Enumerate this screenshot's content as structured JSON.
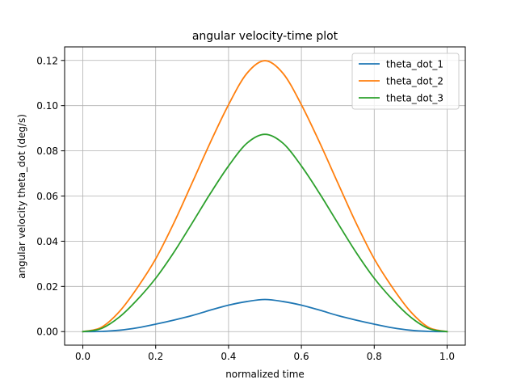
{
  "chart_data": {
    "type": "line",
    "title": "angular velocity-time plot",
    "xlabel": "normalized time",
    "ylabel": "angular velocity theta_dot (deg/s)",
    "xlim": [
      -0.05,
      1.05
    ],
    "ylim": [
      -0.006,
      0.126
    ],
    "xticks": [
      0.0,
      0.2,
      0.4,
      0.6,
      0.8,
      1.0
    ],
    "xtick_labels": [
      "0.0",
      "0.2",
      "0.4",
      "0.6",
      "0.8",
      "1.0"
    ],
    "yticks": [
      0.0,
      0.02,
      0.04,
      0.06,
      0.08,
      0.1,
      0.12
    ],
    "ytick_labels": [
      "0.00",
      "0.02",
      "0.04",
      "0.06",
      "0.08",
      "0.10",
      "0.12"
    ],
    "grid": true,
    "legend_position": "top-right",
    "x": [
      0.0,
      0.05,
      0.1,
      0.15,
      0.2,
      0.25,
      0.3,
      0.35,
      0.4,
      0.45,
      0.5,
      0.55,
      0.6,
      0.65,
      0.7,
      0.75,
      0.8,
      0.85,
      0.9,
      0.95,
      1.0
    ],
    "series": [
      {
        "name": "theta_dot_1",
        "color": "#1f77b4",
        "values": [
          0.0,
          8e-05,
          0.0006,
          0.0017,
          0.0033,
          0.0051,
          0.0071,
          0.0095,
          0.0117,
          0.0133,
          0.0142,
          0.0133,
          0.0117,
          0.0095,
          0.0071,
          0.0051,
          0.0033,
          0.0017,
          0.0006,
          8e-05,
          0.0
        ]
      },
      {
        "name": "theta_dot_2",
        "color": "#ff7f0e",
        "values": [
          0.0,
          0.0018,
          0.0088,
          0.0195,
          0.0322,
          0.0481,
          0.0658,
          0.0837,
          0.1004,
          0.1142,
          0.1199,
          0.1142,
          0.1004,
          0.0837,
          0.0658,
          0.0481,
          0.0322,
          0.0195,
          0.0088,
          0.0018,
          0.0
        ]
      },
      {
        "name": "theta_dot_3",
        "color": "#2ca02c",
        "values": [
          0.0,
          0.0013,
          0.0064,
          0.0142,
          0.0236,
          0.0351,
          0.048,
          0.0611,
          0.0733,
          0.0833,
          0.0873,
          0.0833,
          0.0733,
          0.0611,
          0.048,
          0.0351,
          0.0236,
          0.0142,
          0.0064,
          0.0013,
          0.0
        ]
      }
    ]
  }
}
